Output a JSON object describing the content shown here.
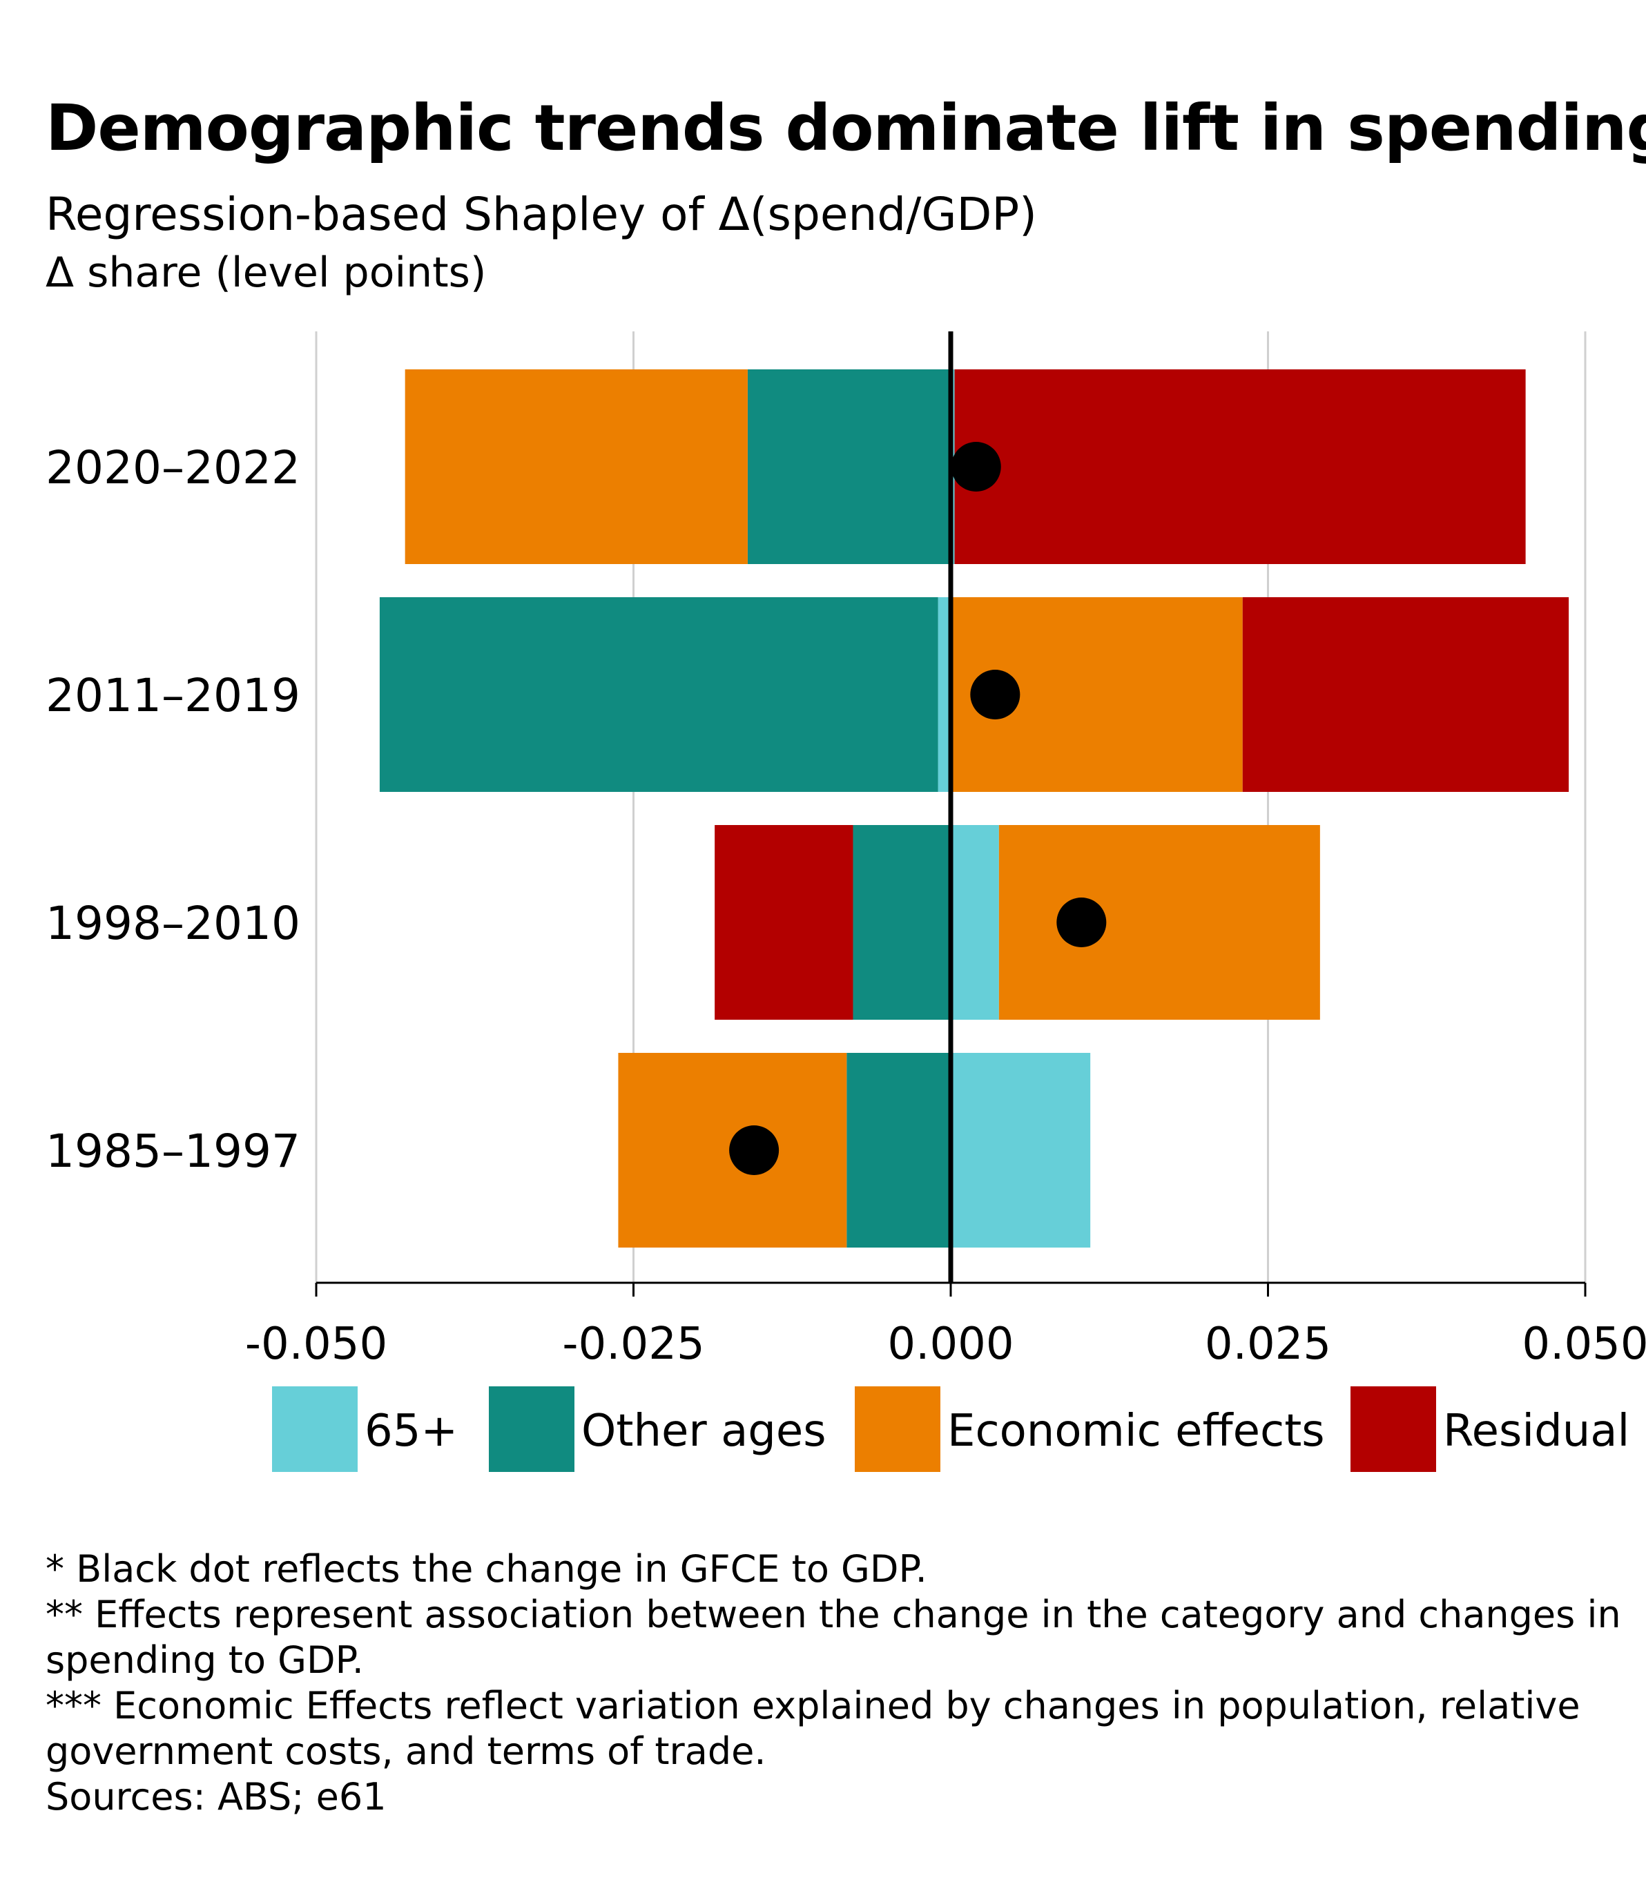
{
  "chart_data": {
    "type": "bar",
    "orientation": "horizontal",
    "stacked": true,
    "diverging": true,
    "title": "Demographic trends dominate lift in spending",
    "subtitle": "Regression-based Shapley of Δ(spend/GDP)",
    "unit_label": "Δ share (level points)",
    "categories": [
      "2020–2022",
      "2011–2019",
      "1998–2010",
      "1985–1997"
    ],
    "series": [
      {
        "name": "65+",
        "color": "#66cfd8",
        "values": [
          0.0003,
          -0.001,
          0.0038,
          0.011
        ]
      },
      {
        "name": "Other ages",
        "color": "#108b80",
        "values": [
          -0.016,
          -0.044,
          -0.0077,
          -0.0082
        ]
      },
      {
        "name": "Economic effects",
        "color": "#ec7f00",
        "values": [
          -0.027,
          0.023,
          0.0253,
          -0.018
        ]
      },
      {
        "name": "Residual",
        "color": "#b30000",
        "values": [
          0.045,
          0.0257,
          -0.0109,
          0
        ]
      }
    ],
    "net_change": {
      "description": "Black dot reflects the change in GFCE to GDP",
      "values": [
        0.002,
        0.0035,
        0.0103,
        -0.0155
      ]
    },
    "xlim": [
      -0.05,
      0.05
    ],
    "xticks": [
      "-0.050",
      "-0.025",
      "0.000",
      "0.025",
      "0.050"
    ],
    "xtick_values": [
      -0.05,
      -0.025,
      0,
      0.025,
      0.05
    ],
    "grid": "vertical",
    "legend_position": "bottom"
  },
  "notes": [
    "* Black dot reflects the change in GFCE to GDP.",
    "** Effects represent association between the change in the category and changes in spending to GDP.",
    "*** Economic Effects reflect variation explained by changes in population, relative government costs, and terms of trade.",
    "Sources: ABS; e61"
  ]
}
